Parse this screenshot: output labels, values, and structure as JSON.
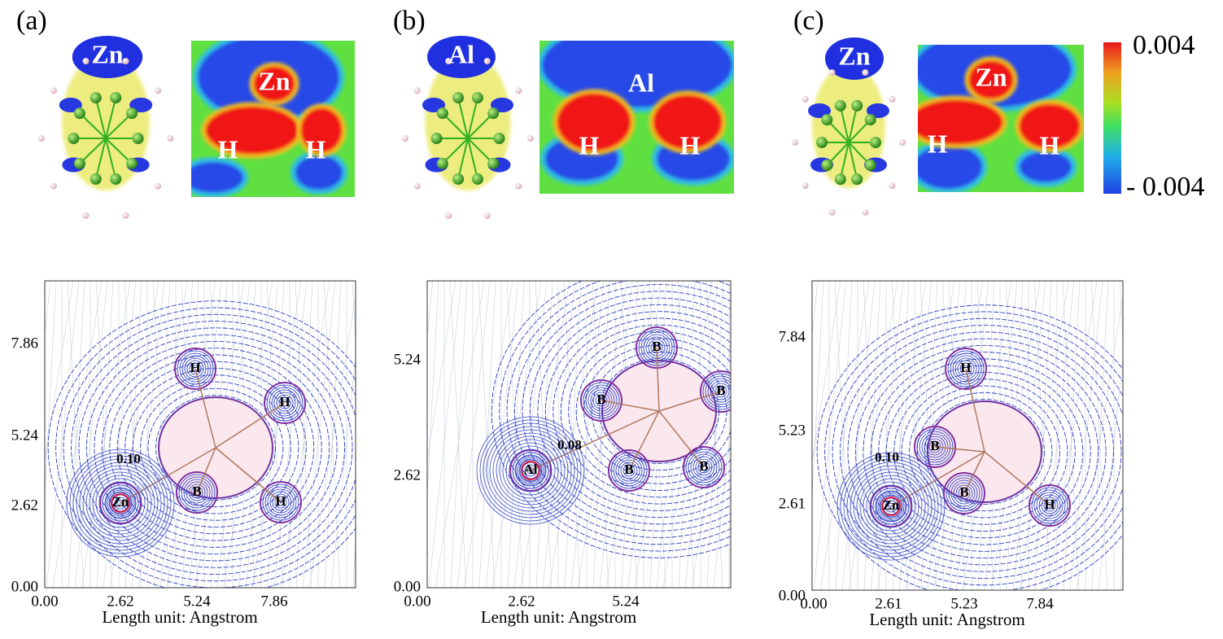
{
  "panels": [
    {
      "label": "(a)",
      "molecule_label": "Zn",
      "map_labels": [
        "Zn",
        "H",
        "H"
      ],
      "contour": {
        "yticks": [
          "7.86",
          "5.24",
          "2.62",
          "0.00"
        ],
        "xticks": [
          "0.00",
          "2.62",
          "5.24",
          "7.86"
        ],
        "xlabel": "Length unit: Angstrom",
        "atoms": [
          "H",
          "H",
          "B",
          "H",
          "Zn"
        ],
        "bcp_value": "0.10"
      }
    },
    {
      "label": "(b)",
      "molecule_label": "Al",
      "map_labels": [
        "Al",
        "H",
        "H"
      ],
      "contour": {
        "yticks": [
          "5.24",
          "2.62",
          "0.00"
        ],
        "xticks": [
          "0.00",
          "2.62",
          "5.24"
        ],
        "xlabel": "Length unit: Angstrom",
        "atoms": [
          "B",
          "B",
          "B",
          "B",
          "B",
          "Al"
        ],
        "bcp_value": "0.08"
      }
    },
    {
      "label": "(c)",
      "molecule_label": "Zn",
      "map_labels": [
        "Zn",
        "H",
        "H"
      ],
      "contour": {
        "yticks": [
          "7.84",
          "5.23",
          "2.61",
          "0.00"
        ],
        "xticks": [
          "0.00",
          "2.61",
          "5.23",
          "7.84"
        ],
        "xlabel": "Length unit: Angstrom",
        "atoms": [
          "H",
          "B",
          "B",
          "H",
          "Zn"
        ],
        "bcp_value": "0.10"
      }
    }
  ],
  "colorbar": {
    "max": "0.004",
    "min": "- 0.004"
  }
}
